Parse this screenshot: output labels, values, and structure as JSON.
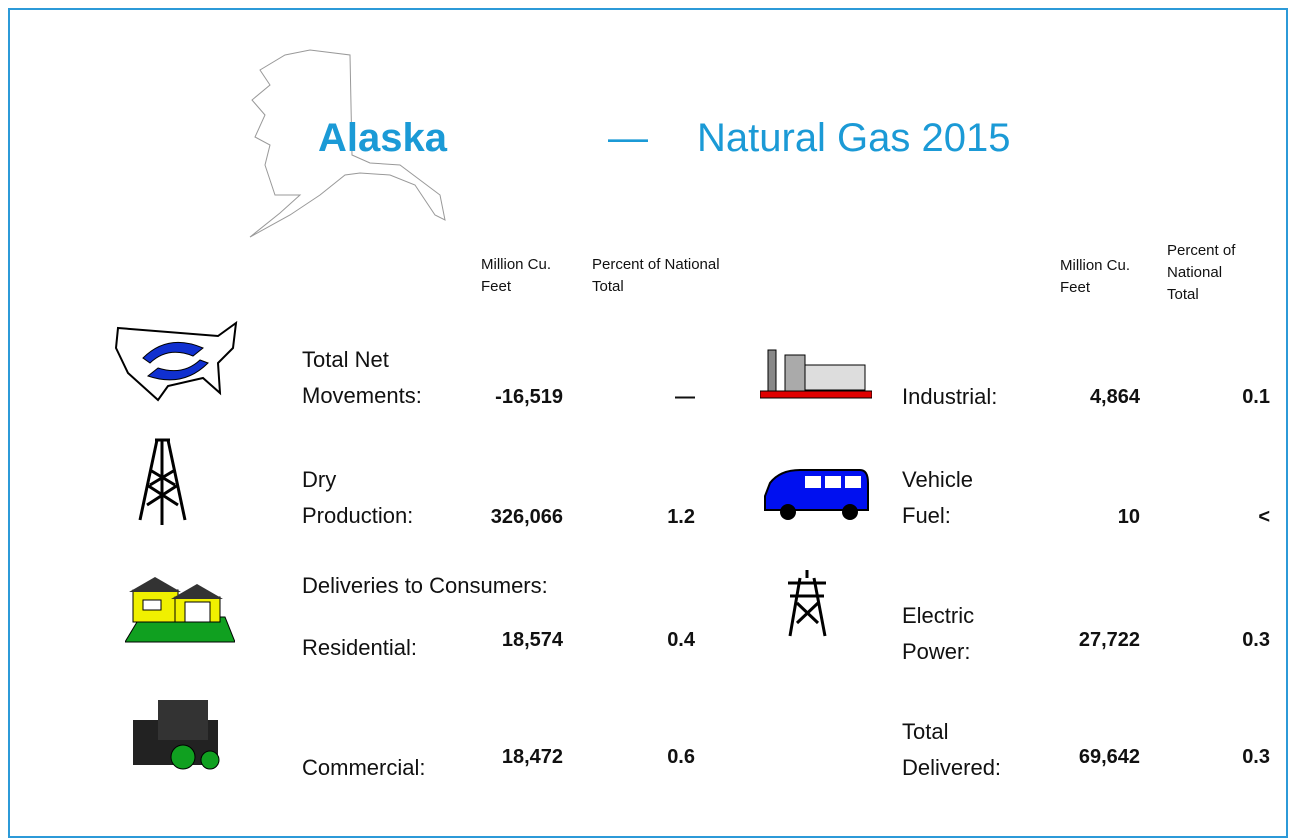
{
  "header": {
    "state": "Alaska",
    "dash": "—",
    "title": "Natural Gas 2015"
  },
  "left_columns": {
    "volume": "Million Cu. Feet",
    "percent": "Percent of National Total"
  },
  "right_columns": {
    "volume": "Million Cu. Feet",
    "percent": "Percent of National Total"
  },
  "deliveries_heading": "Deliveries to Consumers:",
  "left_rows": [
    {
      "label": "Total Net Movements:",
      "value": "-16,519",
      "percent": "—"
    },
    {
      "label": "Dry Production:",
      "value": "326,066",
      "percent": "1.2"
    },
    {
      "label": "Residential:",
      "value": "18,574",
      "percent": "0.4"
    },
    {
      "label": "Commercial:",
      "value": "18,472",
      "percent": "0.6"
    }
  ],
  "right_rows": [
    {
      "label": "Industrial:",
      "value": "4,864",
      "percent": "0.1"
    },
    {
      "label": "Vehicle Fuel:",
      "value": "10",
      "percent": "<"
    },
    {
      "label": "Electric Power:",
      "value": "27,722",
      "percent": "0.3"
    },
    {
      "label": "Total Delivered:",
      "value": "69,642",
      "percent": "0.3"
    }
  ]
}
